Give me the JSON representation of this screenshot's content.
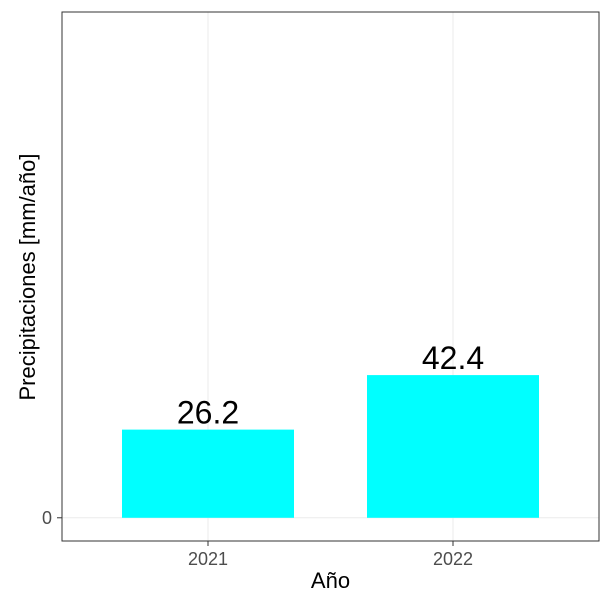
{
  "chart_data": {
    "type": "bar",
    "categories": [
      "2021",
      "2022"
    ],
    "values": [
      26.2,
      42.4
    ],
    "data_labels": [
      "26.2",
      "42.4"
    ],
    "title": "",
    "xlabel": "Año",
    "ylabel": "Precipitaciones [mm/año]",
    "ylim": [
      -6.9,
      150.3
    ],
    "y_ticks": [
      0
    ],
    "y_tick_labels": [
      "0"
    ],
    "grid": true,
    "legend": "none",
    "colors": {
      "bar": "#00ffff",
      "grid": "#ebebeb",
      "panel_border": "#333333",
      "background": "#ffffff"
    }
  }
}
